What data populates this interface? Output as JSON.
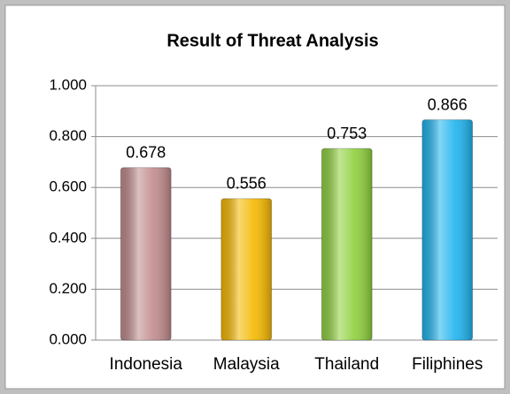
{
  "chart_data": {
    "type": "bar",
    "title": "Result of Threat Analysis",
    "categories": [
      "Indonesia",
      "Malaysia",
      "Thailand",
      "Filiphines"
    ],
    "values": [
      0.678,
      0.556,
      0.753,
      0.866
    ],
    "colors": [
      "#c08a8c",
      "#f5b800",
      "#8fd03e",
      "#1fb4ee"
    ],
    "ylim": [
      0,
      1
    ],
    "yticks": [
      {
        "value": 0,
        "label": "0.000"
      },
      {
        "value": 0.2,
        "label": "0.200"
      },
      {
        "value": 0.4,
        "label": "0.400"
      },
      {
        "value": 0.6,
        "label": "0.600"
      },
      {
        "value": 0.8,
        "label": "0.800"
      },
      {
        "value": 1,
        "label": "1.000"
      }
    ],
    "grid": true
  }
}
